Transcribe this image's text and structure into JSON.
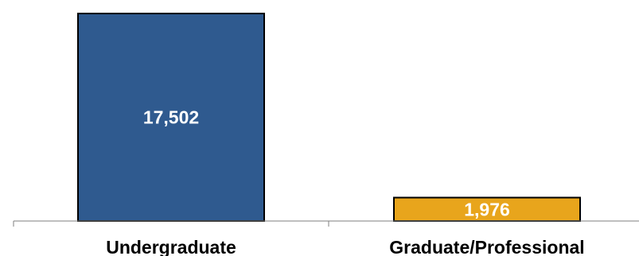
{
  "chart_data": {
    "type": "bar",
    "categories": [
      "Undergraduate",
      "Graduate/Professional"
    ],
    "values": [
      17502,
      1976
    ],
    "value_labels": [
      "17,502",
      "1,976"
    ],
    "colors": [
      "#2f5a8f",
      "#e8a51c"
    ],
    "title": "",
    "xlabel": "",
    "ylabel": "",
    "ylim": [
      0,
      17502
    ],
    "grid": false,
    "legend": "none"
  }
}
